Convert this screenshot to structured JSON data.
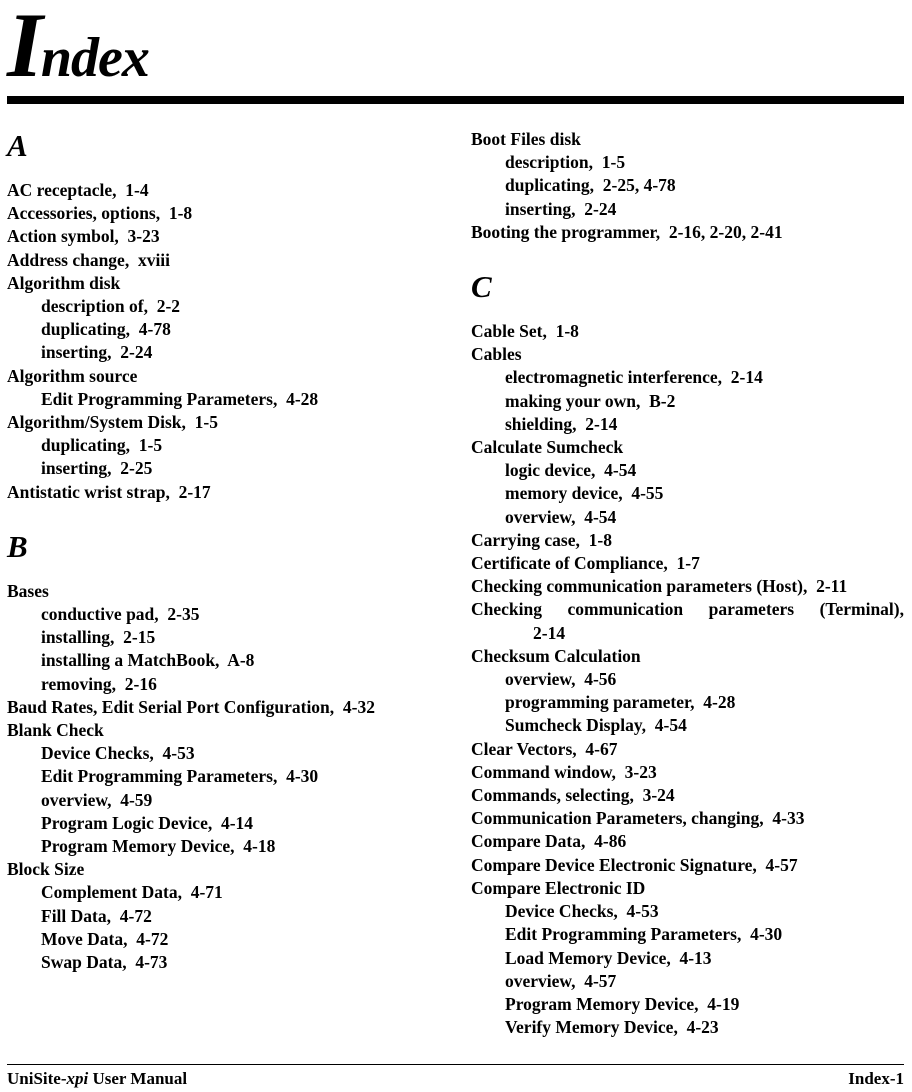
{
  "page": {
    "title": {
      "initial": "I",
      "rest": "ndex"
    },
    "footer": {
      "left_prefix": "UniSite-",
      "left_italic": "xpi",
      "left_suffix": " User Manual",
      "right": "Index-1"
    }
  },
  "columns": [
    {
      "blocks": [
        {
          "h": "A"
        },
        {
          "i": 0,
          "t": "AC receptacle,  1-4"
        },
        {
          "i": 0,
          "t": "Accessories, options,  1-8"
        },
        {
          "i": 0,
          "t": "Action symbol,  3-23"
        },
        {
          "i": 0,
          "t": "Address change,  xviii"
        },
        {
          "i": 0,
          "t": "Algorithm disk"
        },
        {
          "i": 1,
          "t": "description of,  2-2"
        },
        {
          "i": 1,
          "t": "duplicating,  4-78"
        },
        {
          "i": 1,
          "t": "inserting,  2-24"
        },
        {
          "i": 0,
          "t": "Algorithm source"
        },
        {
          "i": 1,
          "t": "Edit Programming Parameters,  4-28"
        },
        {
          "i": 0,
          "t": "Algorithm/System Disk,  1-5"
        },
        {
          "i": 1,
          "t": "duplicating,  1-5"
        },
        {
          "i": 1,
          "t": "inserting,  2-25"
        },
        {
          "i": 0,
          "t": "Antistatic wrist strap,  2-17"
        },
        {
          "h": "B"
        },
        {
          "i": 0,
          "t": "Bases"
        },
        {
          "i": 1,
          "t": "conductive pad,  2-35"
        },
        {
          "i": 1,
          "t": "installing,  2-15"
        },
        {
          "i": 1,
          "t": "installing a MatchBook,  A-8"
        },
        {
          "i": 1,
          "t": "removing,  2-16"
        },
        {
          "i": 0,
          "t": "Baud Rates, Edit Serial Port Configuration,  4-32"
        },
        {
          "i": 0,
          "t": "Blank Check"
        },
        {
          "i": 1,
          "t": "Device Checks,  4-53"
        },
        {
          "i": 1,
          "t": "Edit Programming Parameters,  4-30"
        },
        {
          "i": 1,
          "t": "overview,  4-59"
        },
        {
          "i": 1,
          "t": "Program Logic Device,  4-14"
        },
        {
          "i": 1,
          "t": "Program Memory Device,  4-18"
        },
        {
          "i": 0,
          "t": "Block Size"
        },
        {
          "i": 1,
          "t": "Complement Data,  4-71"
        },
        {
          "i": 1,
          "t": "Fill Data,  4-72"
        },
        {
          "i": 1,
          "t": "Move Data,  4-72"
        },
        {
          "i": 1,
          "t": "Swap Data,  4-73"
        }
      ]
    },
    {
      "blocks": [
        {
          "i": 0,
          "t": "Boot Files disk"
        },
        {
          "i": 1,
          "t": "description,  1-5"
        },
        {
          "i": 1,
          "t": "duplicating,  2-25, 4-78"
        },
        {
          "i": 1,
          "t": "inserting,  2-24"
        },
        {
          "i": 0,
          "t": "Booting the programmer,  2-16, 2-20, 2-41"
        },
        {
          "h": "C"
        },
        {
          "i": 0,
          "t": "Cable Set,  1-8"
        },
        {
          "i": 0,
          "t": "Cables"
        },
        {
          "i": 1,
          "t": "electromagnetic interference,  2-14"
        },
        {
          "i": 1,
          "t": "making your own,  B-2"
        },
        {
          "i": 1,
          "t": "shielding,  2-14"
        },
        {
          "i": 0,
          "t": "Calculate Sumcheck"
        },
        {
          "i": 1,
          "t": "logic device,  4-54"
        },
        {
          "i": 1,
          "t": "memory device,  4-55"
        },
        {
          "i": 1,
          "t": "overview,  4-54"
        },
        {
          "i": 0,
          "t": "Carrying case,  1-8"
        },
        {
          "i": 0,
          "t": "Certificate of Compliance,  1-7"
        },
        {
          "i": 0,
          "t": "Checking communication parameters (Host),  2-11"
        },
        {
          "i": 0,
          "t": "Checking communication parameters (Terminal),",
          "j": true
        },
        {
          "i": 2,
          "t": "2-14"
        },
        {
          "i": 0,
          "t": "Checksum Calculation"
        },
        {
          "i": 1,
          "t": "overview,  4-56"
        },
        {
          "i": 1,
          "t": "programming parameter,  4-28"
        },
        {
          "i": 1,
          "t": "Sumcheck Display,  4-54"
        },
        {
          "i": 0,
          "t": "Clear Vectors,  4-67"
        },
        {
          "i": 0,
          "t": "Command window,  3-23"
        },
        {
          "i": 0,
          "t": "Commands, selecting,  3-24"
        },
        {
          "i": 0,
          "t": "Communication Parameters, changing,  4-33"
        },
        {
          "i": 0,
          "t": "Compare Data,  4-86"
        },
        {
          "i": 0,
          "t": "Compare Device Electronic Signature,  4-57"
        },
        {
          "i": 0,
          "t": "Compare Electronic ID"
        },
        {
          "i": 1,
          "t": "Device Checks,  4-53"
        },
        {
          "i": 1,
          "t": "Edit Programming Parameters,  4-30"
        },
        {
          "i": 1,
          "t": "Load Memory Device,  4-13"
        },
        {
          "i": 1,
          "t": "overview,  4-57"
        },
        {
          "i": 1,
          "t": "Program Memory Device,  4-19"
        },
        {
          "i": 1,
          "t": "Verify Memory Device,  4-23"
        }
      ]
    }
  ]
}
